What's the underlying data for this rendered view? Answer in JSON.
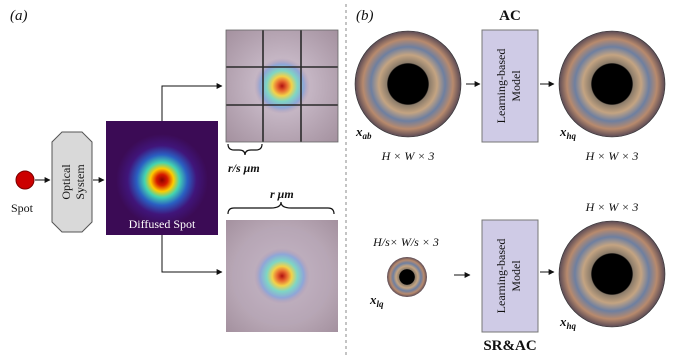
{
  "panel_a": {
    "label": "(a)",
    "spot_label": "Spot",
    "optical_line1": "Optical",
    "optical_line2": "System",
    "diffused_label": "Diffused Spot",
    "small_scale_label": "r/s μm",
    "large_scale_label": "r μm"
  },
  "panel_b": {
    "label": "(b)",
    "ac_title": "AC",
    "srac_title": "SR&AC",
    "model_line1": "Learning-based",
    "model_line2": "Model",
    "x_ab": "x",
    "x_ab_sub": "ab",
    "x_hq": "x",
    "x_hq_sub": "hq",
    "x_lq": "x",
    "x_lq_sub": "lq",
    "dims_full": "H × W × 3",
    "dims_small": "H/s× W/s × 3"
  },
  "colors": {
    "spot_red": "#cc0000",
    "optical_fill": "#d9d9d9",
    "model_fill": "#cfcbe6",
    "diffuse_bg": "#3b0b55"
  }
}
